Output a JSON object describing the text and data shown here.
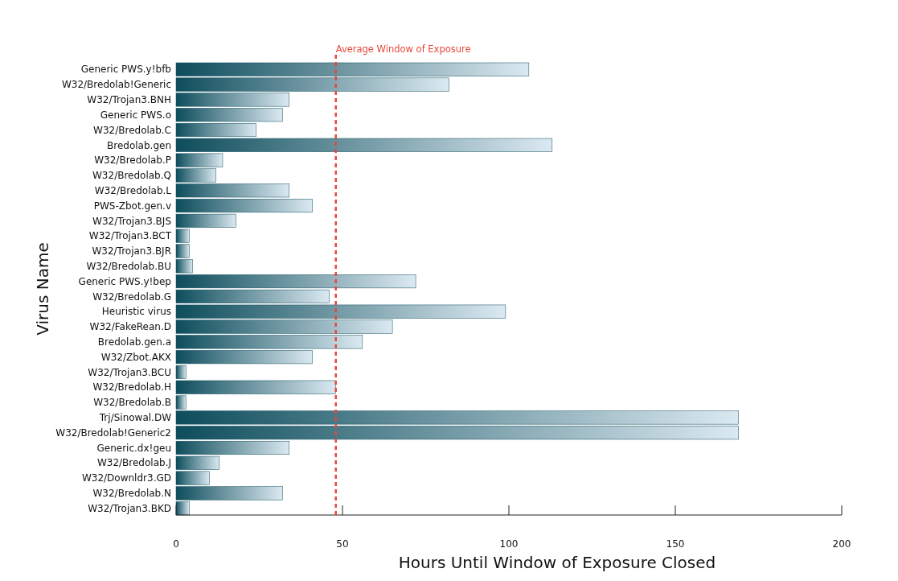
{
  "chart_data": {
    "type": "bar",
    "orientation": "horizontal",
    "xlabel": "Hours Until Window of Exposure Closed",
    "ylabel": "Virus Name",
    "categories": [
      "Generic PWS.y!bfb",
      "W32/Bredolab!Generic",
      "W32/Trojan3.BNH",
      "Generic PWS.o",
      "W32/Bredolab.C",
      "Bredolab.gen",
      "W32/Bredolab.P",
      "W32/Bredolab.Q",
      "W32/Bredolab.L",
      "PWS-Zbot.gen.v",
      "W32/Trojan3.BJS",
      "W32/Trojan3.BCT",
      "W32/Trojan3.BJR",
      "W32/Bredolab.BU",
      "Generic PWS.y!bep",
      "W32/Bredolab.G",
      "Heuristic virus",
      "W32/FakeRean.D",
      "Bredolab.gen.a",
      "W32/Zbot.AKX",
      "W32/Trojan3.BCU",
      "W32/Bredolab.H",
      "W32/Bredolab.B",
      "Trj/Sinowal.DW",
      "W32/Bredolab!Generic2",
      "Generic.dx!geu",
      "W32/Bredolab.J",
      "W32/Downldr3.GD",
      "W32/Bredolab.N",
      "W32/Trojan3.BKD"
    ],
    "values": [
      106,
      82,
      34,
      32,
      24,
      113,
      14,
      12,
      34,
      41,
      18,
      4,
      4,
      5,
      72,
      46,
      99,
      65,
      56,
      41,
      3,
      48,
      3,
      169,
      169,
      34,
      13,
      10,
      32,
      4
    ],
    "color": "#0e4d5c",
    "xlim": [
      0,
      200
    ],
    "xticks": [
      0,
      50,
      100,
      150,
      200
    ],
    "grid": false,
    "ref_lines": [
      {
        "axis": "x",
        "value": 48,
        "label": "Average Window of Exposure",
        "color": "#e8473b",
        "line_style": "dashed"
      }
    ]
  }
}
